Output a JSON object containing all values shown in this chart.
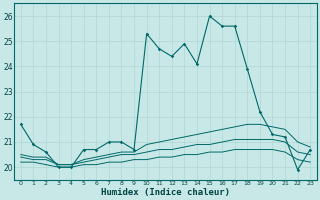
{
  "xlabel": "Humidex (Indice chaleur)",
  "background_color": "#c8e8e8",
  "grid_color": "#b0d4d4",
  "line_color": "#006868",
  "x": [
    0,
    1,
    2,
    3,
    4,
    5,
    6,
    7,
    8,
    9,
    10,
    11,
    12,
    13,
    14,
    15,
    16,
    17,
    18,
    19,
    20,
    21,
    22,
    23
  ],
  "series1": [
    21.7,
    20.9,
    20.6,
    20.0,
    20.0,
    20.7,
    20.7,
    21.0,
    21.0,
    20.7,
    25.3,
    24.7,
    24.4,
    24.9,
    24.1,
    26.0,
    25.6,
    25.6,
    23.9,
    22.2,
    21.3,
    21.2,
    19.9,
    20.7
  ],
  "series2": [
    20.5,
    20.4,
    20.4,
    20.1,
    20.1,
    20.3,
    20.4,
    20.5,
    20.6,
    20.6,
    20.9,
    21.0,
    21.1,
    21.2,
    21.3,
    21.4,
    21.5,
    21.6,
    21.7,
    21.7,
    21.6,
    21.5,
    21.0,
    20.8
  ],
  "series3": [
    20.4,
    20.3,
    20.3,
    20.1,
    20.1,
    20.2,
    20.3,
    20.4,
    20.5,
    20.5,
    20.6,
    20.7,
    20.7,
    20.8,
    20.9,
    20.9,
    21.0,
    21.1,
    21.1,
    21.1,
    21.1,
    21.0,
    20.6,
    20.5
  ],
  "series4": [
    20.2,
    20.2,
    20.1,
    20.0,
    20.0,
    20.1,
    20.1,
    20.2,
    20.2,
    20.3,
    20.3,
    20.4,
    20.4,
    20.5,
    20.5,
    20.6,
    20.6,
    20.7,
    20.7,
    20.7,
    20.7,
    20.6,
    20.3,
    20.2
  ],
  "ylim": [
    19.5,
    26.5
  ],
  "yticks": [
    20,
    21,
    22,
    23,
    24,
    25,
    26
  ],
  "xlim": [
    -0.5,
    23.5
  ]
}
